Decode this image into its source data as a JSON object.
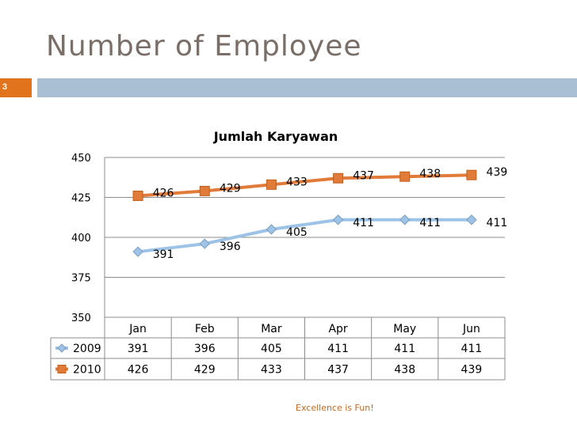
{
  "slide": {
    "title": "Number of Employee",
    "number": "3",
    "footer": "Excellence is Fun!"
  },
  "colors": {
    "accent_orange": "#e0731c",
    "accent_blue": "#a9bfd3",
    "series_2009": "#9dc3e6",
    "series_2010": "#e07b39"
  },
  "chart_data": {
    "type": "line",
    "title": "Jumlah Karyawan",
    "categories": [
      "Jan",
      "Feb",
      "Mar",
      "Apr",
      "May",
      "Jun"
    ],
    "series": [
      {
        "name": "2009",
        "values": [
          391,
          396,
          405,
          411,
          411,
          411
        ]
      },
      {
        "name": "2010",
        "values": [
          426,
          429,
          433,
          437,
          438,
          439
        ]
      }
    ],
    "ylim": [
      350,
      450
    ],
    "yticks": [
      "350",
      "375",
      "400",
      "425",
      "450"
    ],
    "grid": true,
    "legend": "bottom data table",
    "xlabel": "",
    "ylabel": ""
  }
}
